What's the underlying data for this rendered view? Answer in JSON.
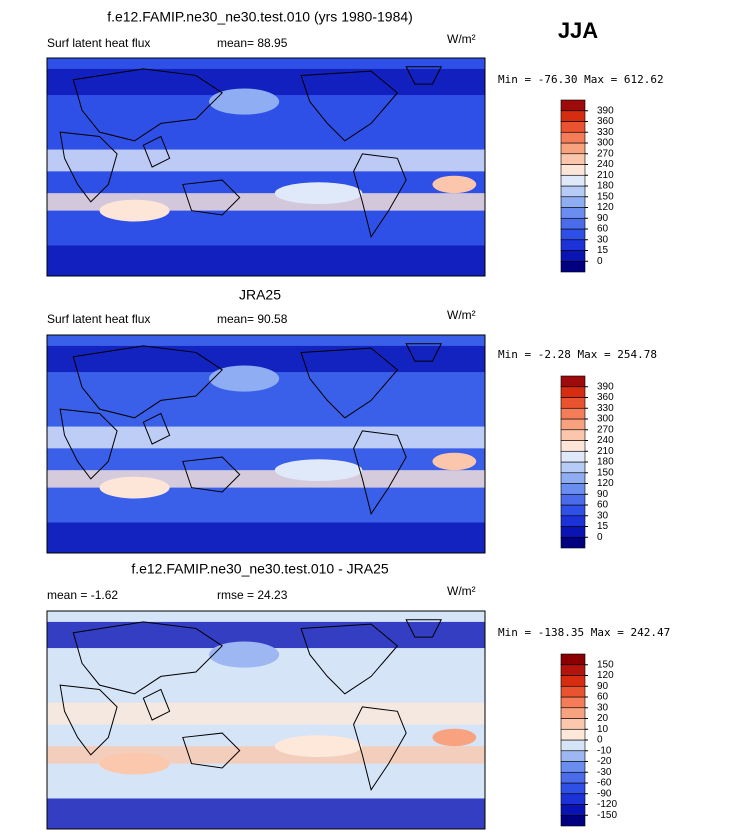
{
  "season": "JJA",
  "panels": [
    {
      "title": "f.e12.FAMIP.ne30_ne30.test.010 (yrs 1980-1984)",
      "left_label": "Surf latent heat flux",
      "stat_label": "mean=  88.95",
      "units": "W/m²",
      "min_max": "Min = -76.30 Max = 612.62",
      "colorbar": {
        "levels": [
          0,
          15,
          30,
          60,
          90,
          120,
          150,
          180,
          210,
          240,
          270,
          300,
          330,
          360,
          390
        ],
        "colors": [
          "#000080",
          "#0a14b4",
          "#1a32d6",
          "#2f50e6",
          "#4a6ceb",
          "#6a8ef0",
          "#8eadf3",
          "#b6cbf6",
          "#e0e9f9",
          "#fde6d8",
          "#fbc6ab",
          "#f8a27f",
          "#f47c58",
          "#ea5330",
          "#d62c0f",
          "#9e0b0b"
        ]
      },
      "background": "#2f50e6"
    },
    {
      "title": "JRA25",
      "left_label": "Surf latent heat flux",
      "stat_label": "mean=  90.58",
      "units": "W/m²",
      "min_max": "Min =  -2.28 Max = 254.78",
      "colorbar": {
        "levels": [
          0,
          15,
          30,
          60,
          90,
          120,
          150,
          180,
          210,
          240,
          270,
          300,
          330,
          360,
          390
        ],
        "colors": [
          "#000080",
          "#0a14b4",
          "#1a32d6",
          "#2f50e6",
          "#4a6ceb",
          "#6a8ef0",
          "#8eadf3",
          "#b6cbf6",
          "#e0e9f9",
          "#fde6d8",
          "#fbc6ab",
          "#f8a27f",
          "#f47c58",
          "#ea5330",
          "#d62c0f",
          "#9e0b0b"
        ]
      },
      "background": "#3a5fe9"
    },
    {
      "title": "f.e12.FAMIP.ne30_ne30.test.010 - JRA25",
      "left_label": "mean =  -1.62",
      "stat_label": "rmse =  24.23",
      "units": "W/m²",
      "min_max": "Min = -138.35 Max = 242.47",
      "colorbar": {
        "levels": [
          -150,
          -120,
          -90,
          -60,
          -30,
          -20,
          -10,
          0,
          10,
          20,
          30,
          60,
          90,
          120,
          150
        ],
        "colors": [
          "#000080",
          "#0a14b4",
          "#1a32d6",
          "#2f50e6",
          "#4a6ceb",
          "#6a8ef0",
          "#9db7f3",
          "#d6e4f8",
          "#fde8da",
          "#fbc8ad",
          "#f8a27f",
          "#f47c58",
          "#ea5330",
          "#d62c0f",
          "#b3140c",
          "#8b0000"
        ]
      },
      "background": "#d6e4f8"
    }
  ]
}
